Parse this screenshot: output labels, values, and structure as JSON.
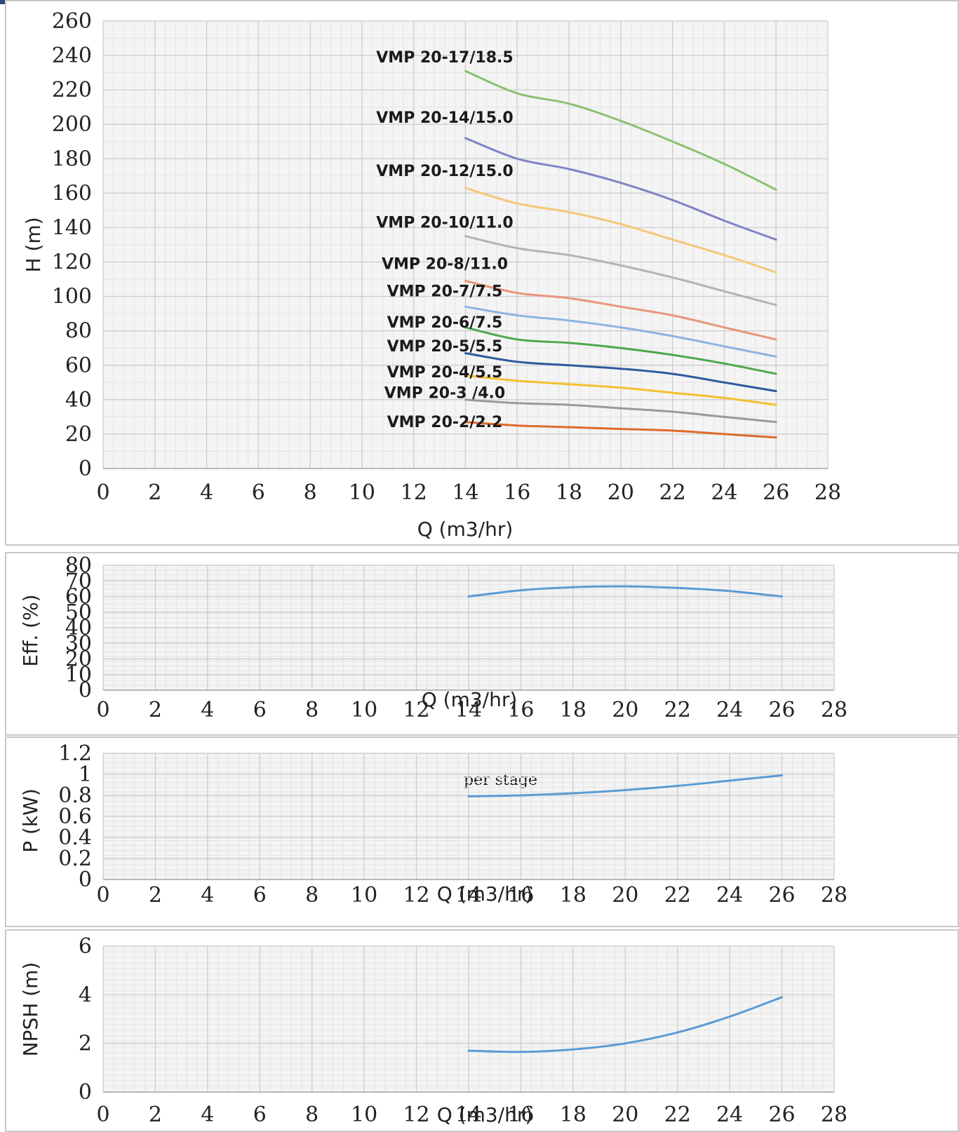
{
  "chart_data": [
    {
      "type": "line",
      "xlabel": "Q (m3/hr)",
      "ylabel": "H (m)",
      "xlim": [
        0,
        28
      ],
      "ylim": [
        0,
        260
      ],
      "xticks": [
        "0",
        "2",
        "4",
        "6",
        "8",
        "10",
        "12",
        "14",
        "16",
        "18",
        "20",
        "22",
        "24",
        "26",
        "28"
      ],
      "yticks": [
        "0",
        "20",
        "40",
        "60",
        "80",
        "100",
        "120",
        "140",
        "160",
        "180",
        "200",
        "220",
        "240",
        "260"
      ],
      "grid": true,
      "x": [
        14,
        16,
        18,
        20,
        22,
        24,
        26
      ],
      "series": [
        {
          "name": "VMP 20-17/18.5",
          "color": "#8cc06e",
          "values": [
            231,
            218,
            212,
            202,
            190,
            177,
            162
          ]
        },
        {
          "name": "VMP 20-14/15.0",
          "color": "#7e83c6",
          "values": [
            192,
            180,
            174,
            166,
            156,
            144,
            133
          ]
        },
        {
          "name": "VMP 20-12/15.0",
          "color": "#f6c77a",
          "values": [
            163,
            154,
            149,
            142,
            133,
            124,
            114
          ]
        },
        {
          "name": "VMP 20-10/11.0",
          "color": "#b3b3b3",
          "values": [
            135,
            128,
            124,
            118,
            111,
            103,
            95
          ]
        },
        {
          "name": "VMP 20-8/11.0",
          "color": "#e8957a",
          "values": [
            109,
            102,
            99,
            94,
            89,
            82,
            75
          ]
        },
        {
          "name": "VMP 20-7/7.5",
          "color": "#8db4e2",
          "values": [
            94,
            89,
            86,
            82,
            77,
            71,
            65
          ]
        },
        {
          "name": "VMP 20-6/7.5",
          "color": "#4ea84a",
          "values": [
            82,
            75,
            73,
            70,
            66,
            61,
            55
          ]
        },
        {
          "name": "VMP 20-5/5.5",
          "color": "#2e5a9e",
          "values": [
            67,
            62,
            60,
            58,
            55,
            50,
            45
          ]
        },
        {
          "name": "VMP 20-4/5.5",
          "color": "#f2c12e",
          "values": [
            54,
            51,
            49,
            47,
            44,
            41,
            37
          ]
        },
        {
          "name": "VMP 20-3 /4.0",
          "color": "#9a9a9a",
          "values": [
            40,
            38,
            37,
            35,
            33,
            30,
            27
          ]
        },
        {
          "name": "VMP 20-2/2.2",
          "color": "#e06a2a",
          "values": [
            27,
            25,
            24,
            23,
            22,
            20,
            18
          ]
        }
      ]
    },
    {
      "type": "line",
      "xlabel": "Q (m3/hr)",
      "ylabel": "Eff. (%)",
      "xlim": [
        0,
        28
      ],
      "ylim": [
        0,
        80
      ],
      "xticks": [
        "0",
        "2",
        "4",
        "6",
        "8",
        "10",
        "12",
        "14",
        "16",
        "18",
        "20",
        "22",
        "24",
        "26",
        "28"
      ],
      "yticks": [
        "0",
        "10",
        "20",
        "30",
        "40",
        "50",
        "60",
        "70",
        "80"
      ],
      "grid": true,
      "x": [
        14,
        16,
        18,
        20,
        22,
        24,
        26
      ],
      "series": [
        {
          "color": "#5b9bd5",
          "values": [
            60,
            64,
            66,
            66.5,
            65.5,
            63.5,
            60
          ]
        }
      ]
    },
    {
      "type": "line",
      "xlabel": "Q (m3/hr)",
      "ylabel": "P (kW)",
      "annotation": "per stage",
      "xlim": [
        0,
        28
      ],
      "ylim": [
        0,
        1.2
      ],
      "xticks": [
        "0",
        "2",
        "4",
        "6",
        "8",
        "10",
        "12",
        "14",
        "16",
        "18",
        "20",
        "22",
        "24",
        "26",
        "28"
      ],
      "yticks": [
        "0",
        "0.2",
        "0.4",
        "0.6",
        "0.8",
        "1",
        "1.2"
      ],
      "grid": true,
      "x": [
        14,
        16,
        18,
        20,
        22,
        24,
        26
      ],
      "series": [
        {
          "color": "#5b9bd5",
          "values": [
            0.79,
            0.8,
            0.82,
            0.85,
            0.89,
            0.94,
            0.99
          ]
        }
      ]
    },
    {
      "type": "line",
      "xlabel": "Q (m3/hr)",
      "ylabel": "NPSH (m)",
      "xlim": [
        0,
        28
      ],
      "ylim": [
        0,
        6
      ],
      "xticks": [
        "0",
        "2",
        "4",
        "6",
        "8",
        "10",
        "12",
        "14",
        "16",
        "18",
        "20",
        "22",
        "24",
        "26",
        "28"
      ],
      "yticks": [
        "0",
        "2",
        "4",
        "6"
      ],
      "grid": true,
      "x": [
        14,
        16,
        18,
        20,
        22,
        24,
        26
      ],
      "series": [
        {
          "color": "#5b9bd5",
          "values": [
            1.7,
            1.65,
            1.75,
            2.0,
            2.45,
            3.1,
            3.9
          ]
        }
      ]
    }
  ]
}
